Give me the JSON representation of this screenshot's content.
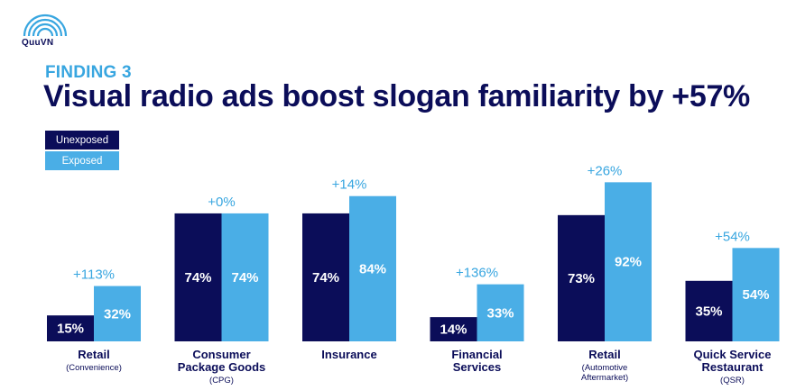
{
  "brand": {
    "logo_text": "QuuVN"
  },
  "header": {
    "kicker": "FINDING 3",
    "title": "Visual radio ads boost slogan familiarity by +57%"
  },
  "legend": {
    "unexposed": "Unexposed",
    "exposed": "Exposed"
  },
  "colors": {
    "unexposed": "#0b0d59",
    "exposed": "#4aaee6",
    "lift": "#38a6e0",
    "category": "#0b0d59"
  },
  "chart_data": {
    "type": "bar",
    "categories": [
      {
        "name_lines": [
          "Retail"
        ],
        "sub_lines": [
          "(Convenience)"
        ]
      },
      {
        "name_lines": [
          "Consumer",
          "Package Goods"
        ],
        "sub_lines": [
          "(CPG)"
        ]
      },
      {
        "name_lines": [
          "Insurance"
        ],
        "sub_lines": []
      },
      {
        "name_lines": [
          "Financial",
          "Services"
        ],
        "sub_lines": []
      },
      {
        "name_lines": [
          "Retail"
        ],
        "sub_lines": [
          "(Automotive",
          "Aftermarket)"
        ]
      },
      {
        "name_lines": [
          "Quick Service",
          "Restaurant"
        ],
        "sub_lines": [
          "(QSR)"
        ]
      }
    ],
    "series": [
      {
        "name": "Unexposed",
        "values": [
          15,
          74,
          74,
          14,
          73,
          35
        ],
        "labels": [
          "15%",
          "74%",
          "74%",
          "14%",
          "73%",
          "35%"
        ]
      },
      {
        "name": "Exposed",
        "values": [
          32,
          74,
          84,
          33,
          92,
          54
        ],
        "labels": [
          "32%",
          "74%",
          "84%",
          "33%",
          "92%",
          "54%"
        ]
      }
    ],
    "lift_labels": [
      "+113%",
      "+0%",
      "+14%",
      "+136%",
      "+26%",
      "+54%"
    ],
    "ylim": [
      0,
      100
    ],
    "grid": false,
    "legend_position": "top-left"
  }
}
